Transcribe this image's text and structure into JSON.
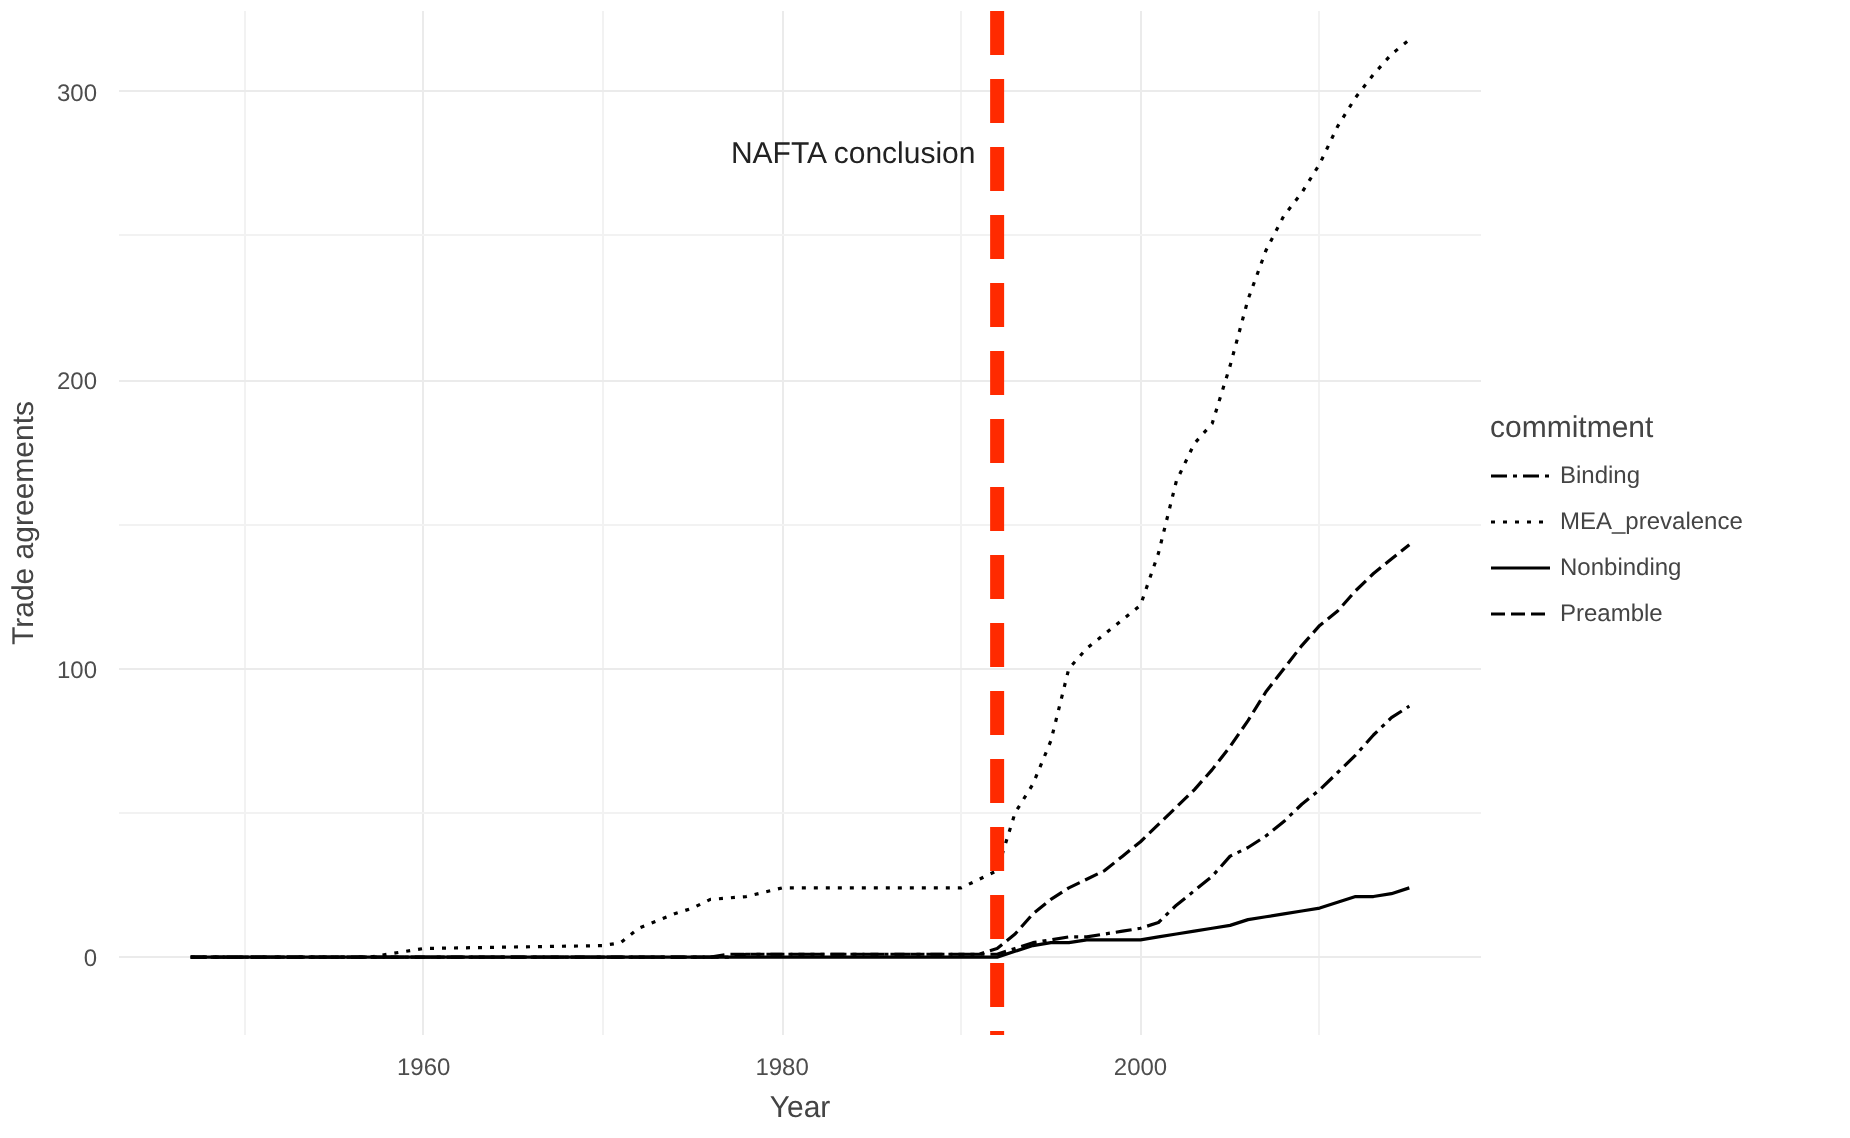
{
  "chart_data": {
    "type": "line",
    "xlabel": "Year",
    "ylabel": "Trade agreements",
    "legend_title": "commitment",
    "xlim": [
      1943,
      2019
    ],
    "ylim": [
      -27,
      328
    ],
    "xticks": [
      1960,
      1980,
      2000
    ],
    "yticks": [
      0,
      100,
      200,
      300
    ],
    "grid": true,
    "legend": "right",
    "series": [
      {
        "name": "Binding",
        "color": "#000000",
        "line_style": "dashdot",
        "x": [
          1947,
          1977,
          1978,
          1992,
          1993,
          1994,
          1995,
          1996,
          1997,
          1998,
          1999,
          2000,
          2001,
          2002,
          2003,
          2004,
          2005,
          2006,
          2007,
          2008,
          2009,
          2010,
          2011,
          2012,
          2013,
          2014,
          2015
        ],
        "values": [
          0,
          0,
          1,
          1,
          3,
          5,
          6,
          7,
          7,
          8,
          9,
          10,
          12,
          18,
          23,
          28,
          35,
          38,
          42,
          47,
          53,
          58,
          64,
          70,
          77,
          83,
          87
        ]
      },
      {
        "name": "MEA_prevalence",
        "color": "#000000",
        "line_style": "dotted",
        "x": [
          1947,
          1957,
          1958,
          1960,
          1970,
          1971,
          1972,
          1974,
          1975,
          1976,
          1978,
          1980,
          1990,
          1991,
          1992,
          1993,
          1994,
          1995,
          1996,
          1997,
          1998,
          1999,
          2000,
          2001,
          2002,
          2003,
          2004,
          2005,
          2006,
          2007,
          2008,
          2009,
          2010,
          2011,
          2012,
          2013,
          2014,
          2015
        ],
        "values": [
          0,
          0,
          1,
          3,
          4,
          5,
          10,
          15,
          17,
          20,
          21,
          24,
          24,
          27,
          30,
          50,
          60,
          75,
          100,
          107,
          112,
          117,
          122,
          140,
          165,
          178,
          185,
          205,
          228,
          245,
          257,
          265,
          275,
          288,
          298,
          306,
          313,
          318
        ]
      },
      {
        "name": "Nonbinding",
        "color": "#000000",
        "line_style": "solid",
        "x": [
          1947,
          1992,
          1993,
          1994,
          1995,
          1996,
          1997,
          1998,
          1999,
          2000,
          2001,
          2002,
          2003,
          2004,
          2005,
          2006,
          2007,
          2008,
          2009,
          2010,
          2011,
          2012,
          2013,
          2014,
          2015
        ],
        "values": [
          0,
          0,
          2,
          4,
          5,
          5,
          6,
          6,
          6,
          6,
          7,
          8,
          9,
          10,
          11,
          13,
          14,
          15,
          16,
          17,
          19,
          21,
          21,
          22,
          24
        ]
      },
      {
        "name": "Preamble",
        "color": "#000000",
        "line_style": "dashed",
        "x": [
          1947,
          1976,
          1977,
          1991,
          1992,
          1993,
          1994,
          1995,
          1996,
          1997,
          1998,
          1999,
          2000,
          2001,
          2002,
          2003,
          2004,
          2005,
          2006,
          2007,
          2008,
          2009,
          2010,
          2011,
          2012,
          2013,
          2014,
          2015
        ],
        "values": [
          0,
          0,
          1,
          1,
          3,
          8,
          15,
          20,
          24,
          27,
          30,
          35,
          40,
          46,
          52,
          58,
          65,
          73,
          82,
          92,
          100,
          108,
          115,
          120,
          127,
          133,
          138,
          143
        ]
      }
    ],
    "ref_lines": [
      {
        "axis": "x",
        "value": 1992,
        "label": "NAFTA conclusion",
        "color": "#ff2a00",
        "line_style": "dashed"
      }
    ]
  }
}
